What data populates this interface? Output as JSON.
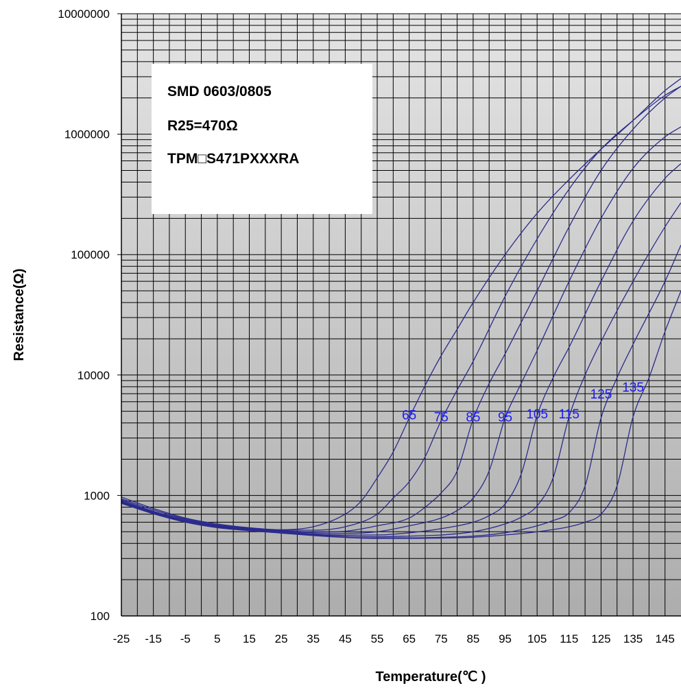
{
  "chart_data": {
    "type": "line",
    "xlabel": "Temperature(℃ )",
    "ylabel": "Resistance(Ω)",
    "xlim": [
      -25,
      150
    ],
    "ylim": [
      100,
      10000000
    ],
    "y_scale": "log",
    "grid": true,
    "x_ticks": [
      -25,
      -15,
      -5,
      5,
      15,
      25,
      35,
      45,
      55,
      65,
      75,
      85,
      95,
      105,
      115,
      125,
      135,
      145
    ],
    "x_tick_labels": [
      "-25",
      "-15",
      "-5",
      "5",
      "15",
      "25",
      "35",
      "45",
      "55",
      "65",
      "75",
      "85",
      "95",
      "105",
      "115",
      "125",
      "135",
      "145"
    ],
    "y_ticks": [
      100,
      1000,
      10000,
      100000,
      1000000,
      10000000
    ],
    "y_tick_labels": [
      "100",
      "1000",
      "10000",
      "100000",
      "1000000",
      "10000000"
    ],
    "info_box": [
      "SMD 0603/0805",
      "R25=470Ω",
      "TPM□S471PXXXRA"
    ],
    "series": [
      {
        "name": "65",
        "label_at": [
          65,
          4700
        ],
        "x": [
          -25,
          -15,
          -5,
          5,
          15,
          25,
          35,
          45,
          50,
          55,
          60,
          65,
          70,
          75,
          80,
          85,
          95,
          105,
          115,
          125,
          135,
          145,
          150
        ],
        "y": [
          970,
          780,
          650,
          580,
          540,
          520,
          550,
          700,
          900,
          1400,
          2300,
          4400,
          8200,
          14500,
          24000,
          40000,
          100000,
          220000,
          420000,
          750000,
          1300000,
          2300000,
          2900000
        ]
      },
      {
        "name": "75",
        "label_at": [
          75,
          4500
        ],
        "x": [
          -25,
          -15,
          -5,
          5,
          15,
          25,
          35,
          45,
          55,
          60,
          65,
          70,
          75,
          80,
          85,
          95,
          105,
          115,
          125,
          135,
          145,
          150
        ],
        "y": [
          940,
          760,
          640,
          570,
          535,
          515,
          515,
          550,
          700,
          950,
          1300,
          2100,
          4200,
          7500,
          13000,
          45000,
          135000,
          350000,
          750000,
          1300000,
          2100000,
          2500000
        ]
      },
      {
        "name": "85",
        "label_at": [
          85,
          4500
        ],
        "x": [
          -25,
          -15,
          -5,
          5,
          15,
          25,
          35,
          45,
          55,
          65,
          70,
          75,
          80,
          85,
          90,
          95,
          105,
          115,
          125,
          135,
          145,
          150
        ],
        "y": [
          920,
          740,
          630,
          565,
          530,
          510,
          500,
          505,
          560,
          650,
          800,
          1050,
          1600,
          4300,
          8500,
          15000,
          50000,
          170000,
          500000,
          1100000,
          2000000,
          2500000
        ]
      },
      {
        "name": "95",
        "label_at": [
          95,
          4500
        ],
        "x": [
          -25,
          -15,
          -5,
          5,
          15,
          25,
          35,
          45,
          55,
          65,
          75,
          80,
          85,
          90,
          95,
          100,
          105,
          115,
          125,
          135,
          145,
          150
        ],
        "y": [
          900,
          730,
          620,
          560,
          525,
          505,
          490,
          485,
          500,
          560,
          650,
          750,
          950,
          1600,
          4400,
          8500,
          16000,
          60000,
          200000,
          520000,
          950000,
          1150000
        ]
      },
      {
        "name": "105",
        "label_at": [
          105,
          4800
        ],
        "x": [
          -25,
          -15,
          -5,
          5,
          15,
          25,
          35,
          45,
          55,
          65,
          75,
          85,
          90,
          95,
          100,
          105,
          110,
          115,
          125,
          135,
          145,
          150
        ],
        "y": [
          890,
          720,
          615,
          555,
          520,
          500,
          480,
          470,
          470,
          490,
          530,
          600,
          680,
          850,
          1500,
          4600,
          9500,
          17000,
          60000,
          190000,
          430000,
          570000
        ]
      },
      {
        "name": "115",
        "label_at": [
          115,
          4800
        ],
        "x": [
          -25,
          -15,
          -5,
          5,
          15,
          25,
          35,
          45,
          55,
          65,
          75,
          85,
          95,
          100,
          105,
          110,
          115,
          120,
          125,
          135,
          145,
          150
        ],
        "y": [
          880,
          715,
          610,
          550,
          518,
          495,
          475,
          460,
          455,
          460,
          470,
          500,
          580,
          660,
          820,
          1400,
          4500,
          10000,
          19000,
          60000,
          170000,
          270000
        ]
      },
      {
        "name": "125",
        "label_at": [
          125,
          7000
        ],
        "x": [
          -25,
          -15,
          -5,
          5,
          15,
          25,
          35,
          45,
          55,
          65,
          75,
          85,
          95,
          105,
          110,
          115,
          120,
          125,
          130,
          135,
          145,
          150
        ],
        "y": [
          870,
          710,
          605,
          545,
          515,
          490,
          470,
          450,
          445,
          445,
          450,
          460,
          490,
          560,
          620,
          720,
          1200,
          4400,
          9500,
          18000,
          60000,
          120000
        ]
      },
      {
        "name": "135",
        "label_at": [
          135,
          8000
        ],
        "x": [
          -25,
          -15,
          -5,
          5,
          15,
          25,
          35,
          45,
          55,
          65,
          75,
          85,
          95,
          105,
          115,
          120,
          125,
          130,
          135,
          140,
          145,
          150
        ],
        "y": [
          860,
          705,
          600,
          540,
          510,
          487,
          465,
          448,
          440,
          440,
          443,
          450,
          470,
          500,
          550,
          600,
          700,
          1200,
          4500,
          9500,
          23000,
          50000
        ]
      }
    ]
  }
}
